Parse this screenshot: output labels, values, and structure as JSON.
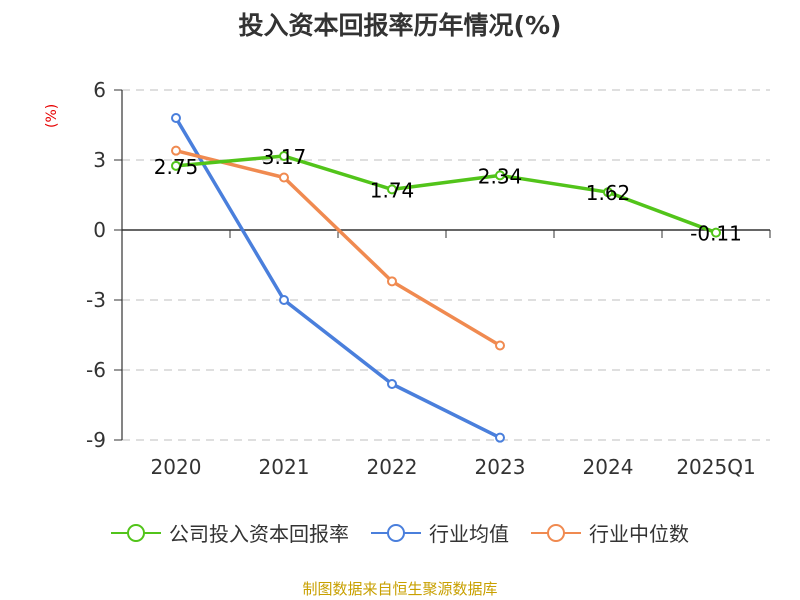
{
  "chart_data": {
    "type": "line",
    "title": "投入资本回报率历年情况(%)",
    "ylabel": "(%)",
    "xlabel": "",
    "categories": [
      "2020",
      "2021",
      "2022",
      "2023",
      "2024",
      "2025Q1"
    ],
    "ylim": [
      -9,
      6
    ],
    "yticks": [
      6,
      3,
      0,
      -3,
      -6,
      -9
    ],
    "ytick_labels": [
      "6",
      "3",
      "0",
      "-3",
      "-6",
      "-9"
    ],
    "grid": true,
    "legend_position": "bottom",
    "series": [
      {
        "name": "公司投入资本回报率",
        "color": "#52c41a",
        "values": [
          2.75,
          3.17,
          1.74,
          2.34,
          1.62,
          -0.11
        ],
        "data_labels": [
          "2.75",
          "3.17",
          "1.74",
          "2.34",
          "1.62",
          "-0.11"
        ]
      },
      {
        "name": "行业均值",
        "color": "#4a7fdc",
        "values": [
          4.8,
          -3.0,
          -6.6,
          -8.9,
          null,
          null
        ]
      },
      {
        "name": "行业中位数",
        "color": "#f08a50",
        "values": [
          3.4,
          2.25,
          -2.2,
          -4.95,
          null,
          null
        ]
      }
    ],
    "source": "制图数据来自恒生聚源数据库"
  }
}
